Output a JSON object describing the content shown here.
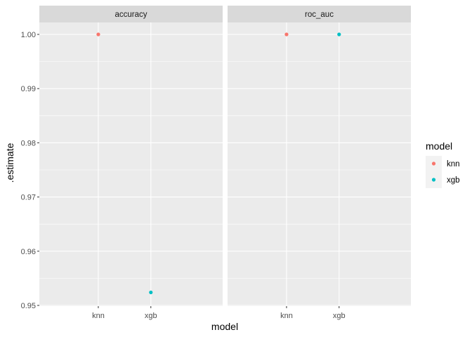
{
  "chart_data": {
    "type": "scatter",
    "facet_by": "metric",
    "panels": [
      {
        "strip_label": "accuracy",
        "points": [
          {
            "model": "knn",
            "estimate": 1.0
          },
          {
            "model": "xgb",
            "estimate": 0.9524
          }
        ]
      },
      {
        "strip_label": "roc_auc",
        "points": [
          {
            "model": "knn",
            "estimate": 1.0
          },
          {
            "model": "xgb",
            "estimate": 1.0
          }
        ]
      }
    ],
    "categories": [
      "knn",
      "xgb"
    ],
    "xlabel": "model",
    "ylabel": ".estimate",
    "ylim": [
      0.95,
      1.0
    ],
    "yticks": [
      0.95,
      0.96,
      0.97,
      0.98,
      0.99,
      1.0
    ],
    "ytick_labels": [
      "0.95",
      "0.96",
      "0.97",
      "0.98",
      "0.99",
      "1.00"
    ],
    "grid": true,
    "legend": {
      "title": "model",
      "position": "right",
      "entries": [
        {
          "label": "knn",
          "color": "#F8766D"
        },
        {
          "label": "xgb",
          "color": "#00BFC4"
        }
      ]
    },
    "colors": {
      "panel_bg": "#EBEBEB",
      "strip_bg": "#D9D9D9",
      "grid": "#FFFFFF"
    }
  }
}
